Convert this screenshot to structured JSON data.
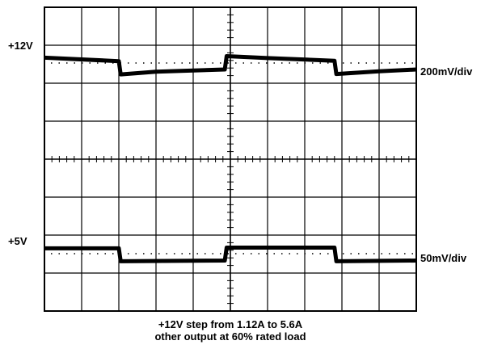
{
  "chart_data": {
    "type": "line",
    "title": "",
    "grid": true,
    "divisions": {
      "x": 10,
      "y": 8
    },
    "channels": [
      {
        "name": "+12V",
        "marker_label": "+12V",
        "scale_label": "200mV/div",
        "units": "mV",
        "reference_level": 0,
        "x": [
          0,
          2.0,
          2.05,
          3.0,
          4.85,
          4.9,
          6.0,
          7.8,
          7.85,
          9.0,
          10.0
        ],
        "y": [
          28,
          10,
          -60,
          -46,
          -34,
          36,
          26,
          12,
          -58,
          -44,
          -34
        ]
      },
      {
        "name": "+5V",
        "marker_label": "+5V",
        "scale_label": "50mV/div",
        "units": "mV",
        "reference_level": 0,
        "x": [
          0,
          2.0,
          2.05,
          4.85,
          4.9,
          7.8,
          7.85,
          10.0
        ],
        "y": [
          7,
          7,
          -10,
          -9,
          8,
          8,
          -10,
          -9
        ]
      }
    ]
  },
  "caption": {
    "line1": "+12V step from 1.12A to 5.6A",
    "line2": "other output at 60% rated load"
  }
}
